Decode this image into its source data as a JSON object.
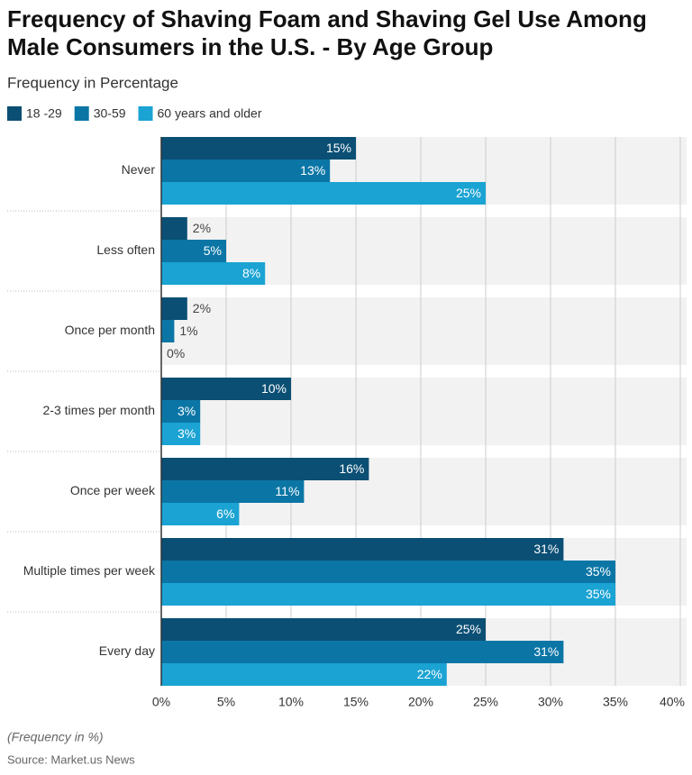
{
  "chart_data": {
    "type": "bar",
    "orientation": "horizontal",
    "title": "Frequency of Shaving Foam and Shaving Gel Use Among Male Consumers in the U.S. - By Age Group",
    "subtitle": "Frequency in Percentage",
    "categories": [
      "Never",
      "Less often",
      "Once per month",
      "2-3 times per month",
      "Once per week",
      "Multiple times per week",
      "Every day"
    ],
    "series": [
      {
        "name": "18 -29",
        "color": "#0b4f74",
        "values": [
          15,
          2,
          2,
          10,
          16,
          31,
          25
        ],
        "value_labels": [
          "15%",
          "2%",
          "2%",
          "10%",
          "16%",
          "31%",
          "25%"
        ]
      },
      {
        "name": "30-59",
        "color": "#0b76a6",
        "values": [
          13,
          5,
          1,
          3,
          11,
          35,
          31
        ],
        "value_labels": [
          "13%",
          "5%",
          "1%",
          "3%",
          "11%",
          "35%",
          "31%"
        ]
      },
      {
        "name": "60 years and older",
        "color": "#1aa3d3",
        "values": [
          25,
          8,
          0,
          3,
          6,
          35,
          22
        ],
        "value_labels": [
          "25%",
          "8%",
          "0%",
          "3%",
          "6%",
          "35%",
          "22%"
        ]
      }
    ],
    "xlim": [
      0,
      40
    ],
    "xticks": [
      {
        "value": 0,
        "label": "0%"
      },
      {
        "value": 5,
        "label": "5%"
      },
      {
        "value": 10,
        "label": "10%"
      },
      {
        "value": 15,
        "label": "15%"
      },
      {
        "value": 20,
        "label": "20%"
      },
      {
        "value": 25,
        "label": "25%"
      },
      {
        "value": 30,
        "label": "30%"
      },
      {
        "value": 35,
        "label": "35%"
      },
      {
        "value": 40,
        "label": "40%"
      }
    ],
    "grid": true,
    "note": "(Frequency in %)",
    "source": "Source: Market.us News"
  }
}
